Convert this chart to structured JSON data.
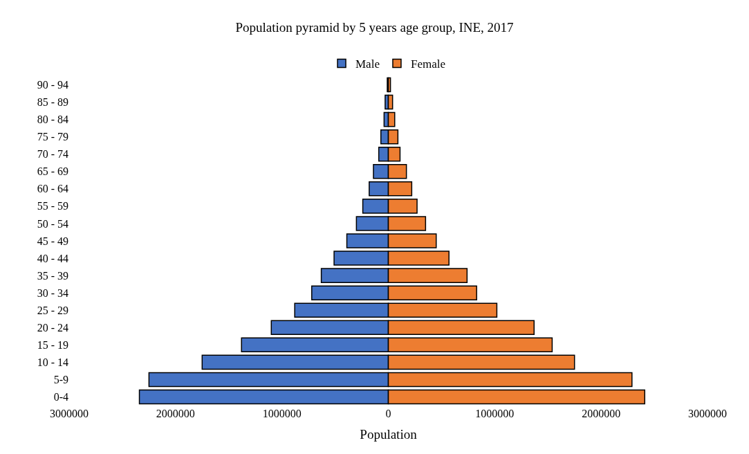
{
  "chart_data": {
    "type": "bar",
    "orientation": "horizontal",
    "title": "Population pyramid by 5 years age group, INE, 2017",
    "xlabel": "Population",
    "categories": [
      "90 - 94",
      "85 - 89",
      "80 - 84",
      "75 - 79",
      "70 - 74",
      "65 - 69",
      "60 - 64",
      "55 - 59",
      "50 - 54",
      "45 - 49",
      "40 - 44",
      "35 - 39",
      "30 - 34",
      "25 - 29",
      "20 - 24",
      "15 - 19",
      "10 - 14",
      "5-9",
      "0-4"
    ],
    "series": [
      {
        "name": "Male",
        "color": "#4472c4",
        "values": [
          -10000,
          -30000,
          -40000,
          -70000,
          -90000,
          -140000,
          -180000,
          -240000,
          -300000,
          -390000,
          -510000,
          -630000,
          -720000,
          -880000,
          -1100000,
          -1380000,
          -1750000,
          -2250000,
          -2340000
        ]
      },
      {
        "name": "Female",
        "color": "#ed7d31",
        "values": [
          20000,
          40000,
          60000,
          90000,
          110000,
          170000,
          220000,
          270000,
          350000,
          450000,
          570000,
          740000,
          830000,
          1020000,
          1370000,
          1540000,
          1750000,
          2290000,
          2410000
        ]
      }
    ],
    "stacked": true,
    "xlim": [
      -3000000,
      3000000
    ],
    "xticks": [
      {
        "value": -3000000,
        "label": "3000000"
      },
      {
        "value": -2000000,
        "label": "2000000"
      },
      {
        "value": -1000000,
        "label": "1000000"
      },
      0,
      1000000,
      2000000,
      3000000
    ],
    "legend": "top"
  }
}
